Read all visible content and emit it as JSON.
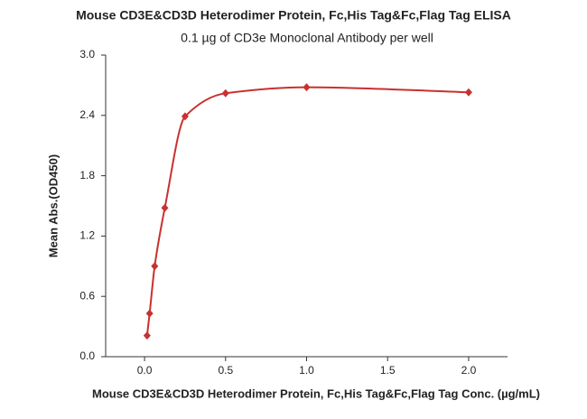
{
  "chart_data": {
    "type": "scatter",
    "title": "Mouse CD3E&CD3D Heterodimer Protein, Fc,His Tag&Fc,Flag Tag ELISA",
    "subtitle": "0.1 µg of CD3e Monoclonal Antibody per well",
    "x_label": "Mouse CD3E&CD3D Heterodimer Protein, Fc,His Tag&Fc,Flag Tag Conc. (µg/mL)",
    "y_label": "Mean Abs.(OD450)",
    "color": "#c8312f",
    "x": [
      0.0156,
      0.03125,
      0.0625,
      0.125,
      0.25,
      0.5,
      1,
      2
    ],
    "values": [
      0.21,
      0.43,
      0.9,
      1.48,
      2.39,
      2.62,
      2.68,
      2.63
    ],
    "xlim": [
      -0.24,
      2.24
    ],
    "ylim": [
      0,
      3.0
    ],
    "xticks": [
      {
        "value": 0,
        "label": "0.0"
      },
      0.5,
      {
        "value": 1,
        "label": "1.0"
      },
      1.5,
      {
        "value": 2,
        "label": "2.0"
      }
    ],
    "yticks": [
      {
        "value": 0,
        "label": "0.0"
      },
      0.6,
      1.2,
      1.8,
      2.4,
      {
        "value": 3,
        "label": "3.0"
      }
    ]
  }
}
